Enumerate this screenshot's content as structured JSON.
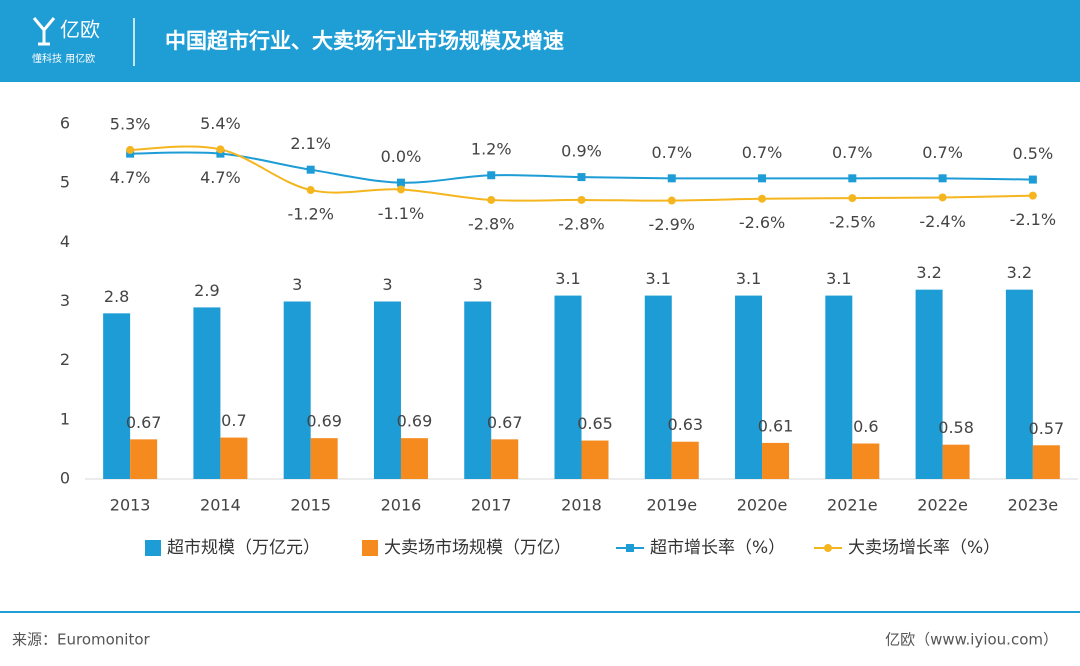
{
  "header": {
    "logo": "亿欧",
    "slogan": "懂科技 用亿欧",
    "title": "中国超市行业、大卖场行业市场规模及增速"
  },
  "chart_data": {
    "type": "bar",
    "categories": [
      "2013",
      "2014",
      "2015",
      "2016",
      "2017",
      "2018",
      "2019e",
      "2020e",
      "2021e",
      "2022e",
      "2023e"
    ],
    "ylim": [
      0,
      6
    ],
    "yticks": [
      0,
      1,
      2,
      3,
      4,
      5,
      6
    ],
    "grid": false,
    "y2lim": [
      -48,
      9.5
    ],
    "legend": "bottom",
    "series": [
      {
        "name": "超市规模（万亿元）",
        "type": "bar",
        "color": "#1d9cd6",
        "values": [
          2.8,
          2.9,
          3,
          3,
          3,
          3.1,
          3.1,
          3.1,
          3.1,
          3.2,
          3.2
        ]
      },
      {
        "name": "大卖场市场规模（万亿）",
        "type": "bar",
        "color": "#f58a1f",
        "values": [
          0.67,
          0.7,
          0.69,
          0.69,
          0.67,
          0.65,
          0.63,
          0.61,
          0.6,
          0.58,
          0.57
        ]
      },
      {
        "name": "超市增长率（%）",
        "type": "line",
        "axis": "y2",
        "color": "#1d9cd6",
        "marker": "square",
        "values": [
          4.7,
          4.7,
          2.1,
          0.0,
          1.2,
          0.9,
          0.7,
          0.7,
          0.7,
          0.7,
          0.5
        ],
        "value_labels": [
          "4.7%",
          "4.7%",
          "2.1%",
          "0.0%",
          "1.2%",
          "0.9%",
          "0.7%",
          "0.7%",
          "0.7%",
          "0.7%",
          "0.5%"
        ]
      },
      {
        "name": "大卖场增长率（%）",
        "type": "line",
        "axis": "y2",
        "color": "#f5b51f",
        "marker": "circle",
        "values": [
          5.3,
          5.4,
          -1.2,
          -1.1,
          -2.8,
          -2.8,
          -2.9,
          -2.6,
          -2.5,
          -2.4,
          -2.1
        ],
        "value_labels": [
          "5.3%",
          "5.4%",
          "-1.2%",
          "-1.1%",
          "-2.8%",
          "-2.8%",
          "-2.9%",
          "-2.6%",
          "-2.5%",
          "-2.4%",
          "-2.1%"
        ]
      }
    ]
  },
  "footer": {
    "source": "来源：Euromonitor",
    "credit": "亿欧（www.iyiou.com）"
  }
}
